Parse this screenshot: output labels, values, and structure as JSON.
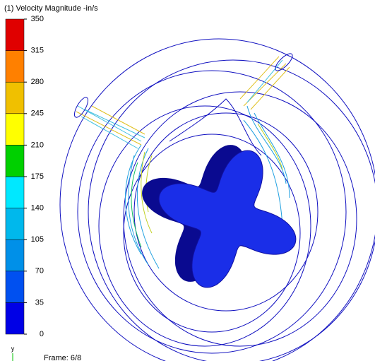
{
  "title": "(1) Velocity Magnitude -in/s",
  "legend": {
    "ticks": [
      0,
      35,
      70,
      105,
      140,
      175,
      210,
      245,
      280,
      315,
      350
    ],
    "colors": [
      "#0000e6",
      "#0050f0",
      "#0090e8",
      "#00b8ec",
      "#00e8ff",
      "#00d000",
      "#ffff00",
      "#f0c000",
      "#ff8000",
      "#e00000"
    ]
  },
  "axis_label": "y",
  "frame": "Frame: 6/8"
}
